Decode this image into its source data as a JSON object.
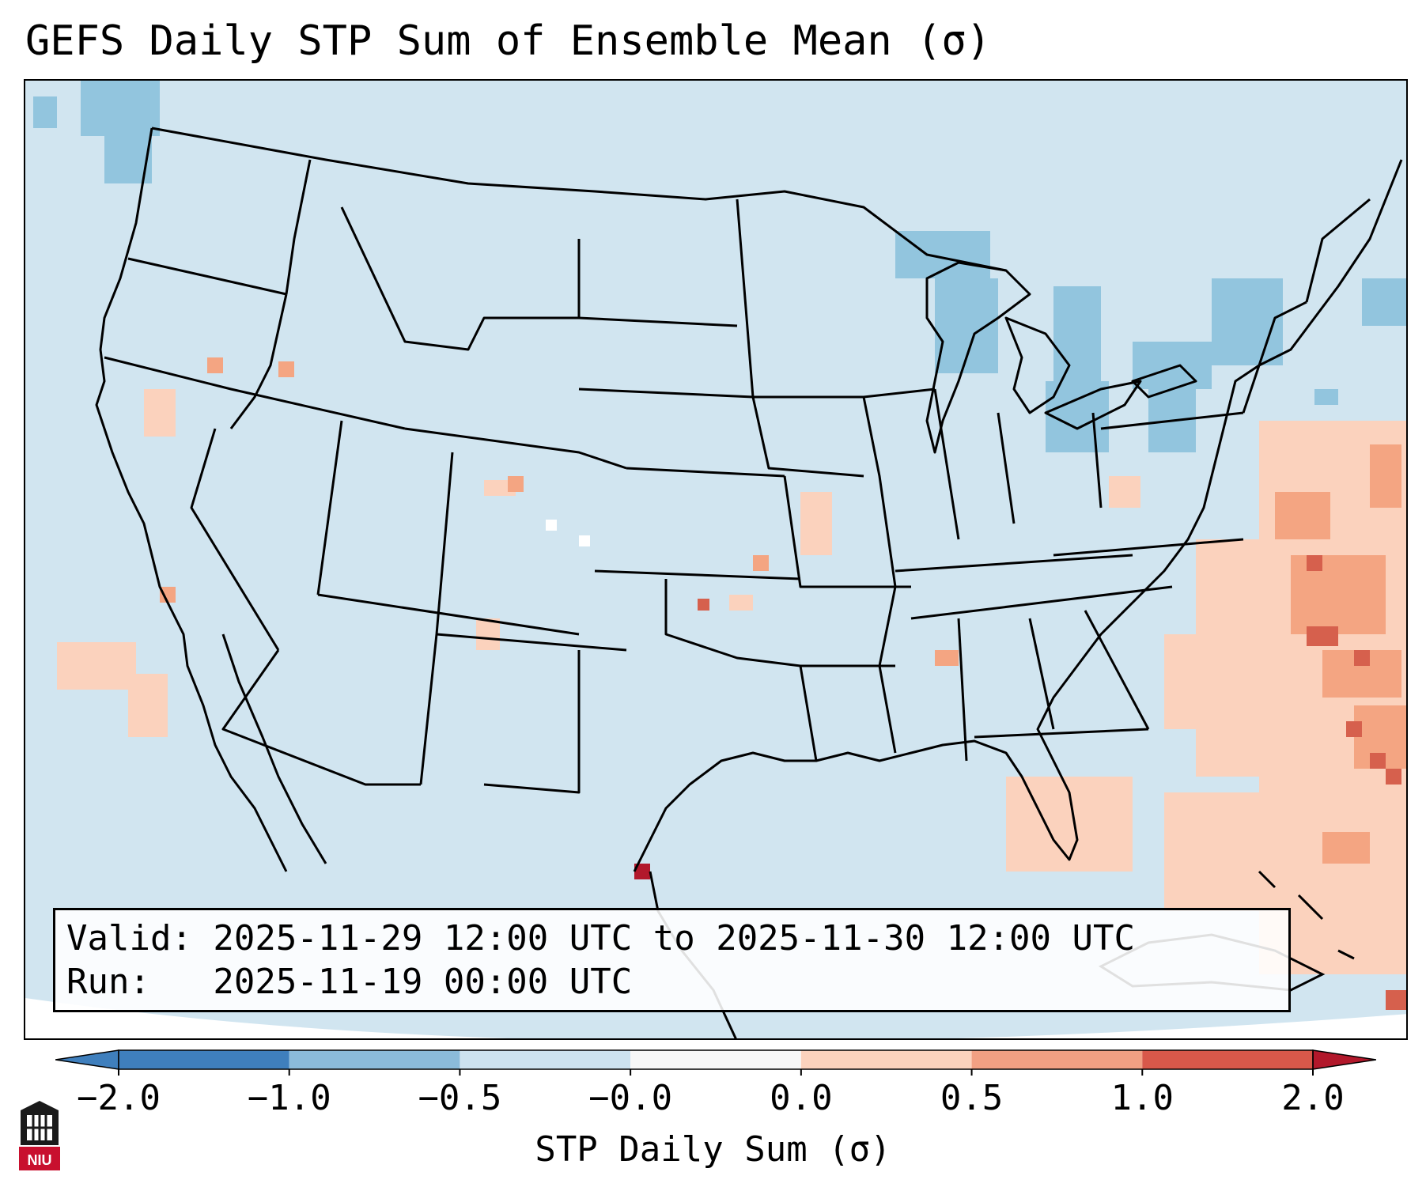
{
  "title": "GEFS Daily STP Sum of Ensemble Mean (σ)",
  "info": {
    "valid_line": "Valid: 2025-11-29 12:00 UTC to 2025-11-30 12:00 UTC",
    "run_line": "Run:   2025-11-19 00:00 UTC"
  },
  "colorbar": {
    "label": "STP Daily Sum (σ)",
    "ticks": [
      "−2.0",
      "−1.0",
      "−0.5",
      "−0.0",
      "0.0",
      "0.5",
      "1.0",
      "2.0"
    ],
    "colors": [
      "#3f7fbd",
      "#8bbbda",
      "#cde2ef",
      "#f7f7f7",
      "#fbd2bd",
      "#f1a083",
      "#d8584a",
      "#b2182b"
    ],
    "extend": "both"
  },
  "map": {
    "background_color": "#d1e5f0",
    "boundary_color": "#000000",
    "region": "Contiguous United States"
  },
  "logo": {
    "text": "NIU"
  }
}
